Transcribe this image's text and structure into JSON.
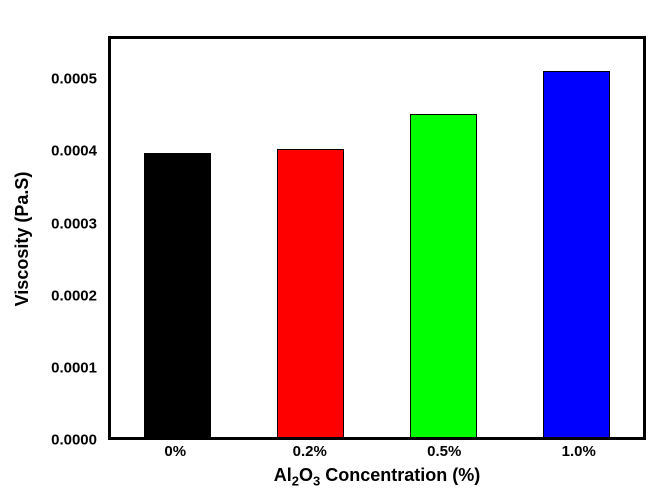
{
  "figure": {
    "background_color": "#ffffff",
    "frame_color": "#000000"
  },
  "chart_data": {
    "type": "bar",
    "title": "",
    "categories": [
      "0%",
      "0.2%",
      "0.5%",
      "1.0%"
    ],
    "values": [
      0.0004,
      0.000405,
      0.000455,
      0.000515
    ],
    "bar_colors": [
      "#000000",
      "#ff0000",
      "#00ff00",
      "#0000ff"
    ],
    "bar_edge_color": "#000000",
    "xlabel_text": "Al2O3 Concentration (%)",
    "xlabel_parts": {
      "element1": "Al",
      "subscript1": "2",
      "element2": "O",
      "subscript2": "3",
      "rest": " Concentration (%)"
    },
    "ylabel": "Viscosity (Pa.S)",
    "ylim": [
      0,
      0.00056
    ],
    "yticks": [
      0,
      0.0001,
      0.0002,
      0.0003,
      0.0004,
      0.0005
    ],
    "ytick_labels": [
      "0.0000",
      "0.0001",
      "0.0002",
      "0.0003",
      "0.0004",
      "0.0005"
    ],
    "grid": false,
    "tick_marks": false,
    "legend_position": "none",
    "bar_width_fraction": 0.5
  }
}
